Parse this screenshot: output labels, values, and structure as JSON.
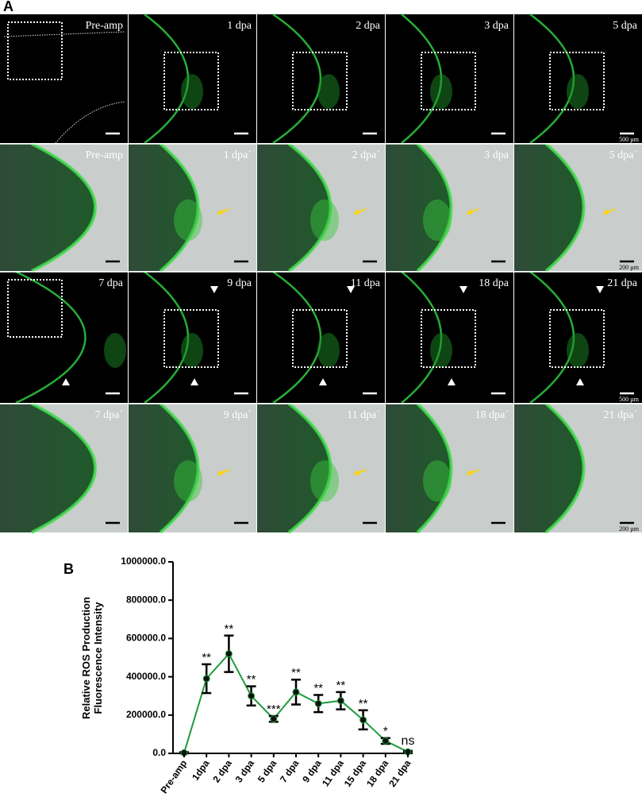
{
  "panel_a": {
    "label": "A",
    "rows": [
      [
        "Pre-amp",
        "1 dpa",
        "2 dpa",
        "3 dpa",
        "5 dpa"
      ],
      [
        "Pre-amp",
        "1 dpa´",
        "2 dpa´",
        "3 dpa",
        "5 dpa´"
      ],
      [
        "7 dpa",
        "9 dpa",
        "11 dpa",
        "18 dpa",
        "21 dpa"
      ],
      [
        "7 dpa´",
        "9 dpa´",
        "11 dpa´",
        "18 dpa´",
        "21 dpa´"
      ]
    ],
    "scale_bars": [
      "500 µm",
      "200 µm",
      "500 µm",
      "200 µm"
    ]
  },
  "panel_b": {
    "label": "B"
  },
  "chart_data": {
    "type": "line",
    "ylabel": [
      "Relative ROS Production",
      "Fluorescence Intensity"
    ],
    "categories": [
      "Pre-amp",
      "1dpa",
      "2 dpa",
      "3 dpa",
      "5 dpa",
      "7 dpa",
      "9 dpa",
      "11 dpa",
      "15 dpa",
      "18 dpa",
      "21 dpa"
    ],
    "values": [
      3000,
      390000,
      520000,
      300000,
      180000,
      320000,
      260000,
      275000,
      175000,
      65000,
      8000
    ],
    "errors": [
      3000,
      75000,
      95000,
      50000,
      15000,
      65000,
      45000,
      45000,
      50000,
      15000,
      5000
    ],
    "significance": [
      null,
      "**",
      "**",
      "**",
      "***",
      "**",
      "**",
      "**",
      "**",
      "*",
      "ns"
    ],
    "color": "#1e9a3c",
    "ylim": [
      0,
      1000000
    ],
    "yticks": [
      {
        "value": 0,
        "label": "0.0"
      },
      {
        "value": 200000,
        "label": "200000.0"
      },
      {
        "value": 400000,
        "label": "400000.0"
      },
      {
        "value": 600000,
        "label": "600000.0"
      },
      {
        "value": 800000,
        "label": "800000.0"
      },
      {
        "value": 1000000,
        "label": "1000000.0"
      }
    ]
  }
}
